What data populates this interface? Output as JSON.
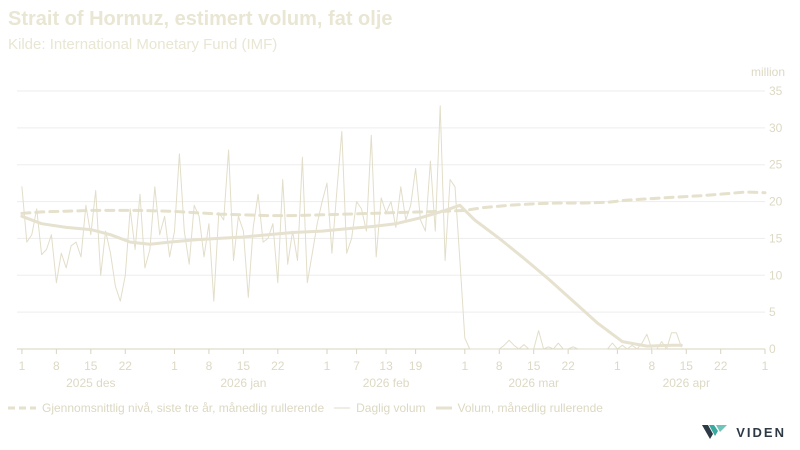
{
  "chart_data": {
    "type": "line",
    "title": "Strait of Hormuz, estimert volum, fat olje",
    "subtitle": "Kilde: International Monetary Fund (IMF)",
    "ylabel": "million",
    "ylim": [
      0,
      35
    ],
    "y_ticks": [
      0,
      5,
      10,
      15,
      20,
      25,
      30,
      35
    ],
    "x_range": [
      "2025-11-30",
      "2026-05-01"
    ],
    "x_ticks": [
      {
        "date": "2025-12-01",
        "label": "1"
      },
      {
        "date": "2025-12-08",
        "label": "8"
      },
      {
        "date": "2025-12-15",
        "label": "15"
      },
      {
        "date": "2025-12-22",
        "label": "22"
      },
      {
        "date": "2026-01-01",
        "label": "1"
      },
      {
        "date": "2026-01-08",
        "label": "8"
      },
      {
        "date": "2026-01-15",
        "label": "15"
      },
      {
        "date": "2026-01-22",
        "label": "22"
      },
      {
        "date": "2026-02-01",
        "label": "1"
      },
      {
        "date": "2026-02-07",
        "label": "7"
      },
      {
        "date": "2026-02-13",
        "label": "13"
      },
      {
        "date": "2026-02-19",
        "label": "19"
      },
      {
        "date": "2026-03-01",
        "label": "1"
      },
      {
        "date": "2026-03-08",
        "label": "8"
      },
      {
        "date": "2026-03-15",
        "label": "15"
      },
      {
        "date": "2026-03-22",
        "label": "22"
      },
      {
        "date": "2026-04-01",
        "label": "1"
      },
      {
        "date": "2026-04-08",
        "label": "8"
      },
      {
        "date": "2026-04-15",
        "label": "15"
      },
      {
        "date": "2026-04-22",
        "label": "22"
      },
      {
        "date": "2026-05-01",
        "label": "1"
      }
    ],
    "month_labels": [
      {
        "date": "2025-12-15",
        "label": "2025 des"
      },
      {
        "date": "2026-01-15",
        "label": "2026 jan"
      },
      {
        "date": "2026-02-13",
        "label": "2026 feb"
      },
      {
        "date": "2026-03-15",
        "label": "2026 mar"
      },
      {
        "date": "2026-04-15",
        "label": "2026 apr"
      }
    ],
    "grid": true,
    "legend_position": "bottom",
    "series": [
      {
        "name": "Gjennomsnittlig nivå, siste tre år, månedlig rullerende",
        "style": "dashed",
        "color": "#e5e1cc",
        "points": [
          [
            "2025-12-01",
            18.4
          ],
          [
            "2025-12-05",
            18.6
          ],
          [
            "2025-12-10",
            18.7
          ],
          [
            "2025-12-15",
            18.8
          ],
          [
            "2025-12-20",
            18.8
          ],
          [
            "2025-12-25",
            18.8
          ],
          [
            "2025-12-31",
            18.7
          ],
          [
            "2026-01-05",
            18.5
          ],
          [
            "2026-01-10",
            18.3
          ],
          [
            "2026-01-15",
            18.2
          ],
          [
            "2026-01-20",
            18.1
          ],
          [
            "2026-01-25",
            18.1
          ],
          [
            "2026-01-31",
            18.2
          ],
          [
            "2026-02-05",
            18.3
          ],
          [
            "2026-02-10",
            18.4
          ],
          [
            "2026-02-15",
            18.5
          ],
          [
            "2026-02-20",
            18.6
          ],
          [
            "2026-02-25",
            18.7
          ],
          [
            "2026-03-01",
            18.8
          ],
          [
            "2026-03-05",
            19.2
          ],
          [
            "2026-03-10",
            19.5
          ],
          [
            "2026-03-15",
            19.7
          ],
          [
            "2026-03-20",
            19.8
          ],
          [
            "2026-03-25",
            19.8
          ],
          [
            "2026-03-30",
            19.9
          ],
          [
            "2026-04-03",
            20.2
          ],
          [
            "2026-04-08",
            20.4
          ],
          [
            "2026-04-13",
            20.6
          ],
          [
            "2026-04-18",
            20.8
          ],
          [
            "2026-04-22",
            21.0
          ],
          [
            "2026-04-27",
            21.3
          ],
          [
            "2026-05-01",
            21.2
          ]
        ]
      },
      {
        "name": "Daglig volum",
        "style": "thin",
        "color": "#e2dec9",
        "points": [
          [
            "2025-12-01",
            22.0
          ],
          [
            "2025-12-02",
            14.5
          ],
          [
            "2025-12-03",
            15.5
          ],
          [
            "2025-12-04",
            19.0
          ],
          [
            "2025-12-05",
            12.8
          ],
          [
            "2025-12-06",
            13.5
          ],
          [
            "2025-12-07",
            15.5
          ],
          [
            "2025-12-08",
            9.0
          ],
          [
            "2025-12-09",
            13.0
          ],
          [
            "2025-12-10",
            11.0
          ],
          [
            "2025-12-11",
            14.0
          ],
          [
            "2025-12-12",
            14.5
          ],
          [
            "2025-12-13",
            12.5
          ],
          [
            "2025-12-14",
            19.5
          ],
          [
            "2025-12-15",
            15.5
          ],
          [
            "2025-12-16",
            21.5
          ],
          [
            "2025-12-17",
            10.0
          ],
          [
            "2025-12-18",
            16.0
          ],
          [
            "2025-12-19",
            13.0
          ],
          [
            "2025-12-20",
            8.5
          ],
          [
            "2025-12-21",
            6.5
          ],
          [
            "2025-12-22",
            10.0
          ],
          [
            "2025-12-23",
            19.0
          ],
          [
            "2025-12-24",
            13.5
          ],
          [
            "2025-12-25",
            21.0
          ],
          [
            "2025-12-26",
            11.0
          ],
          [
            "2025-12-27",
            13.5
          ],
          [
            "2025-12-28",
            22.0
          ],
          [
            "2025-12-29",
            15.5
          ],
          [
            "2025-12-30",
            18.0
          ],
          [
            "2025-12-31",
            12.5
          ],
          [
            "2026-01-01",
            16.0
          ],
          [
            "2026-01-02",
            26.5
          ],
          [
            "2026-01-03",
            16.0
          ],
          [
            "2026-01-04",
            11.5
          ],
          [
            "2026-01-05",
            19.5
          ],
          [
            "2026-01-06",
            18.0
          ],
          [
            "2026-01-07",
            12.5
          ],
          [
            "2026-01-08",
            17.0
          ],
          [
            "2026-01-09",
            6.5
          ],
          [
            "2026-01-10",
            18.5
          ],
          [
            "2026-01-11",
            17.5
          ],
          [
            "2026-01-12",
            27.0
          ],
          [
            "2026-01-13",
            12.0
          ],
          [
            "2026-01-14",
            18.0
          ],
          [
            "2026-01-15",
            16.0
          ],
          [
            "2026-01-16",
            7.0
          ],
          [
            "2026-01-17",
            16.5
          ],
          [
            "2026-01-18",
            21.0
          ],
          [
            "2026-01-19",
            14.5
          ],
          [
            "2026-01-20",
            15.0
          ],
          [
            "2026-01-21",
            17.0
          ],
          [
            "2026-01-22",
            9.0
          ],
          [
            "2026-01-23",
            23.0
          ],
          [
            "2026-01-24",
            11.5
          ],
          [
            "2026-01-25",
            16.0
          ],
          [
            "2026-01-26",
            12.0
          ],
          [
            "2026-01-27",
            26.0
          ],
          [
            "2026-01-28",
            9.0
          ],
          [
            "2026-01-29",
            13.0
          ],
          [
            "2026-01-30",
            17.0
          ],
          [
            "2026-01-31",
            20.0
          ],
          [
            "2026-02-01",
            22.5
          ],
          [
            "2026-02-02",
            13.0
          ],
          [
            "2026-02-03",
            21.5
          ],
          [
            "2026-02-04",
            29.5
          ],
          [
            "2026-02-05",
            13.0
          ],
          [
            "2026-02-06",
            15.0
          ],
          [
            "2026-02-07",
            20.0
          ],
          [
            "2026-02-08",
            19.0
          ],
          [
            "2026-02-09",
            16.0
          ],
          [
            "2026-02-10",
            29.0
          ],
          [
            "2026-02-11",
            12.5
          ],
          [
            "2026-02-12",
            20.5
          ],
          [
            "2026-02-13",
            18.5
          ],
          [
            "2026-02-14",
            20.0
          ],
          [
            "2026-02-15",
            16.5
          ],
          [
            "2026-02-16",
            22.0
          ],
          [
            "2026-02-17",
            17.5
          ],
          [
            "2026-02-18",
            19.5
          ],
          [
            "2026-02-19",
            24.5
          ],
          [
            "2026-02-20",
            17.5
          ],
          [
            "2026-02-21",
            16.0
          ],
          [
            "2026-02-22",
            25.5
          ],
          [
            "2026-02-23",
            16.0
          ],
          [
            "2026-02-24",
            33.0
          ],
          [
            "2026-02-25",
            12.0
          ],
          [
            "2026-02-26",
            23.0
          ],
          [
            "2026-02-27",
            22.0
          ],
          [
            "2026-02-28",
            12.0
          ],
          [
            "2026-03-01",
            1.5
          ],
          [
            "2026-03-02",
            0.0
          ],
          [
            "2026-03-03",
            0.0
          ],
          [
            "2026-03-04",
            0.0
          ],
          [
            "2026-03-05",
            0.0
          ],
          [
            "2026-03-06",
            0.0
          ],
          [
            "2026-03-07",
            0.0
          ],
          [
            "2026-03-08",
            0.0
          ],
          [
            "2026-03-09",
            0.5
          ],
          [
            "2026-03-10",
            1.2
          ],
          [
            "2026-03-11",
            0.5
          ],
          [
            "2026-03-12",
            0.0
          ],
          [
            "2026-03-13",
            0.6
          ],
          [
            "2026-03-14",
            0.0
          ],
          [
            "2026-03-15",
            0.0
          ],
          [
            "2026-03-16",
            2.5
          ],
          [
            "2026-03-17",
            0.0
          ],
          [
            "2026-03-18",
            0.3
          ],
          [
            "2026-03-19",
            0.0
          ],
          [
            "2026-03-20",
            0.8
          ],
          [
            "2026-03-21",
            0.0
          ],
          [
            "2026-03-22",
            0.0
          ],
          [
            "2026-03-23",
            0.3
          ],
          [
            "2026-03-24",
            0.0
          ],
          [
            "2026-03-25",
            0.0
          ],
          [
            "2026-03-26",
            0.0
          ],
          [
            "2026-03-27",
            0.0
          ],
          [
            "2026-03-28",
            0.0
          ],
          [
            "2026-03-29",
            0.0
          ],
          [
            "2026-03-30",
            0.0
          ],
          [
            "2026-03-31",
            0.8
          ],
          [
            "2026-04-01",
            0.0
          ],
          [
            "2026-04-02",
            0.5
          ],
          [
            "2026-04-03",
            0.0
          ],
          [
            "2026-04-04",
            0.5
          ],
          [
            "2026-04-05",
            0.0
          ],
          [
            "2026-04-06",
            0.8
          ],
          [
            "2026-04-07",
            2.0
          ],
          [
            "2026-04-08",
            0.0
          ],
          [
            "2026-04-09",
            0.0
          ],
          [
            "2026-04-10",
            1.0
          ],
          [
            "2026-04-11",
            0.0
          ],
          [
            "2026-04-12",
            2.2
          ],
          [
            "2026-04-13",
            2.2
          ],
          [
            "2026-04-14",
            0.3
          ]
        ]
      },
      {
        "name": "Volum, månedlig rullerende",
        "style": "thick",
        "color": "#e6e2cf",
        "points": [
          [
            "2025-12-01",
            18.0
          ],
          [
            "2025-12-05",
            17.0
          ],
          [
            "2025-12-10",
            16.5
          ],
          [
            "2025-12-15",
            16.2
          ],
          [
            "2025-12-19",
            15.5
          ],
          [
            "2025-12-23",
            14.5
          ],
          [
            "2025-12-27",
            14.2
          ],
          [
            "2025-12-31",
            14.5
          ],
          [
            "2026-01-05",
            14.8
          ],
          [
            "2026-01-10",
            15.0
          ],
          [
            "2026-01-15",
            15.2
          ],
          [
            "2026-01-20",
            15.5
          ],
          [
            "2026-01-25",
            15.8
          ],
          [
            "2026-01-31",
            16.0
          ],
          [
            "2026-02-05",
            16.3
          ],
          [
            "2026-02-10",
            16.6
          ],
          [
            "2026-02-15",
            17.0
          ],
          [
            "2026-02-20",
            17.8
          ],
          [
            "2026-02-25",
            18.8
          ],
          [
            "2026-02-28",
            19.5
          ],
          [
            "2026-03-03",
            17.5
          ],
          [
            "2026-03-08",
            15.0
          ],
          [
            "2026-03-13",
            12.3
          ],
          [
            "2026-03-18",
            9.5
          ],
          [
            "2026-03-23",
            6.5
          ],
          [
            "2026-03-28",
            3.5
          ],
          [
            "2026-04-02",
            1.0
          ],
          [
            "2026-04-07",
            0.4
          ],
          [
            "2026-04-12",
            0.5
          ],
          [
            "2026-04-14",
            0.5
          ]
        ]
      }
    ]
  },
  "legend": {
    "item1": "Gjennomsnittlig nivå, siste tre år, månedlig rullerende",
    "item2": "Daglig volum",
    "item3": "Volum, månedlig rullerende"
  },
  "brand": {
    "name": "VIDEN"
  },
  "colors": {
    "accent": "#e6e2cf",
    "grid": "#eeeeee",
    "axis": "#d8d4be",
    "logo_text": "#2d3a46",
    "logo_teal": "#3aa9a0"
  }
}
